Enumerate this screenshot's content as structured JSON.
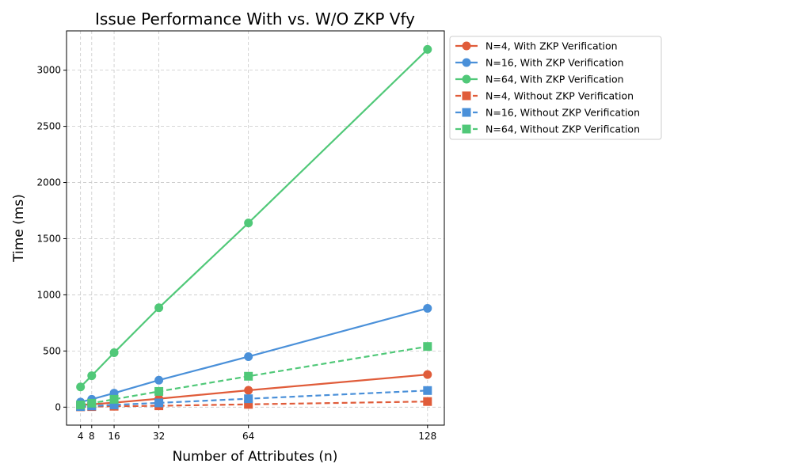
{
  "chart_data": {
    "type": "line",
    "title": "Issue Performance With vs. W/O ZKP Vfy",
    "xlabel": "Number of Attributes (n)",
    "ylabel": "Time (ms)",
    "x": [
      4,
      8,
      16,
      32,
      64,
      128
    ],
    "x_ticks": [
      "4",
      "8",
      "16",
      "32",
      "64",
      "128"
    ],
    "y_ticks": [
      "0",
      "500",
      "1000",
      "1500",
      "2000",
      "2500",
      "3000"
    ],
    "xlim": [
      -1,
      134
    ],
    "ylim": [
      -160,
      3350
    ],
    "grid": true,
    "legend_position": "outside-top-right",
    "series": [
      {
        "name": "N=4, With ZKP Verification",
        "color": "#e05c3a",
        "marker": "circle",
        "linestyle": "solid",
        "values": [
          20,
          25,
          40,
          75,
          150,
          290
        ]
      },
      {
        "name": "N=16, With ZKP Verification",
        "color": "#4a90d9",
        "marker": "circle",
        "linestyle": "solid",
        "values": [
          45,
          70,
          125,
          240,
          450,
          880
        ]
      },
      {
        "name": "N=64, With ZKP Verification",
        "color": "#50c878",
        "marker": "circle",
        "linestyle": "solid",
        "values": [
          180,
          280,
          485,
          885,
          1640,
          3185
        ]
      },
      {
        "name": "N=4, Without ZKP Verification",
        "color": "#e05c3a",
        "marker": "square",
        "linestyle": "dashed",
        "values": [
          3,
          5,
          8,
          12,
          25,
          50
        ]
      },
      {
        "name": "N=16, Without ZKP Verification",
        "color": "#4a90d9",
        "marker": "square",
        "linestyle": "dashed",
        "values": [
          5,
          10,
          20,
          38,
          75,
          148
        ]
      },
      {
        "name": "N=64, Without ZKP Verification",
        "color": "#50c878",
        "marker": "square",
        "linestyle": "dashed",
        "values": [
          20,
          35,
          70,
          140,
          275,
          540
        ]
      }
    ]
  }
}
